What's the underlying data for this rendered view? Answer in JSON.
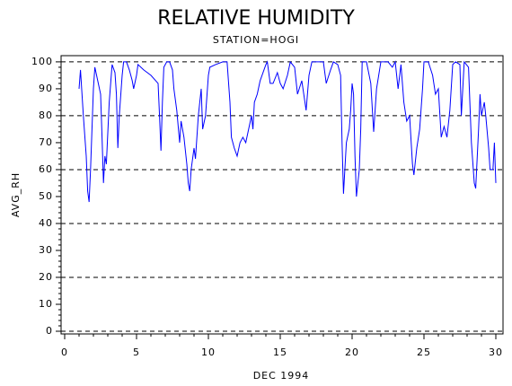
{
  "chart_data": {
    "type": "line",
    "title": "RELATIVE HUMIDITY",
    "subtitle": "STATION=HOGI",
    "x_label": "DEC 1994",
    "y_label": "AVG_RH",
    "xlim": [
      -0.25,
      30.5
    ],
    "ylim": [
      -1,
      102.3
    ],
    "xticks": [
      0,
      5,
      10,
      15,
      20,
      25,
      30
    ],
    "yticks": [
      0,
      10,
      20,
      30,
      40,
      50,
      60,
      70,
      80,
      90,
      100
    ],
    "xminorticks": [
      1,
      2,
      3,
      4,
      6,
      7,
      8,
      9,
      11,
      12,
      13,
      14,
      16,
      17,
      18,
      19,
      21,
      22,
      23,
      24,
      26,
      27,
      28,
      29
    ],
    "yminorticks": [
      2,
      4,
      6,
      8,
      12,
      14,
      16,
      18,
      22,
      24,
      26,
      28,
      32,
      34,
      36,
      38,
      42,
      44,
      46,
      48,
      52,
      54,
      56,
      58,
      62,
      64,
      66,
      68,
      72,
      74,
      76,
      78,
      82,
      84,
      86,
      88,
      92,
      94,
      96,
      98
    ],
    "gridlines": [
      0,
      20,
      40,
      60,
      80,
      100
    ],
    "x": [
      1.0,
      1.1,
      1.3,
      1.5,
      1.6,
      1.7,
      1.8,
      2.0,
      2.1,
      2.3,
      2.5,
      2.6,
      2.7,
      2.8,
      2.9,
      3.1,
      3.3,
      3.5,
      3.6,
      3.7,
      3.8,
      4.0,
      4.1,
      4.3,
      4.5,
      4.7,
      4.8,
      5.0,
      5.1,
      5.5,
      6.0,
      6.5,
      6.6,
      6.7,
      6.8,
      6.9,
      7.1,
      7.3,
      7.5,
      7.6,
      7.8,
      8.0,
      8.1,
      8.3,
      8.5,
      8.6,
      8.7,
      8.8,
      9.0,
      9.1,
      9.3,
      9.5,
      9.6,
      9.8,
      10.0,
      10.1,
      10.5,
      11.0,
      11.3,
      11.5,
      11.6,
      11.8,
      12.0,
      12.2,
      12.4,
      12.6,
      12.8,
      13.0,
      13.1,
      13.2,
      13.4,
      13.6,
      13.8,
      14.0,
      14.1,
      14.3,
      14.5,
      14.8,
      15.0,
      15.2,
      15.5,
      15.7,
      16.0,
      16.2,
      16.5,
      16.8,
      17.0,
      17.2,
      17.5,
      18.0,
      18.2,
      18.5,
      18.7,
      19.0,
      19.2,
      19.3,
      19.4,
      19.6,
      19.8,
      19.9,
      20.0,
      20.1,
      20.2,
      20.3,
      20.5,
      20.6,
      20.7,
      21.0,
      21.3,
      21.5,
      21.7,
      22.0,
      22.5,
      22.8,
      23.0,
      23.2,
      23.4,
      23.6,
      23.8,
      24.0,
      24.2,
      24.3,
      24.5,
      24.7,
      24.9,
      25.0,
      25.3,
      25.6,
      25.8,
      26.0,
      26.2,
      26.4,
      26.6,
      26.8,
      27.0,
      27.2,
      27.5,
      27.6,
      27.8,
      28.1,
      28.3,
      28.5,
      28.6,
      28.8,
      28.9,
      29.0,
      29.2,
      29.3,
      29.5,
      29.6,
      29.8,
      29.9,
      30.0
    ],
    "series": [
      {
        "color": "#0000ff",
        "values": [
          90,
          97,
          80,
          65,
          52,
          48,
          60,
          90,
          98,
          93,
          88,
          72,
          55,
          65,
          62,
          85,
          99,
          96,
          88,
          68,
          80,
          95,
          100,
          100,
          97,
          93,
          90,
          95,
          99,
          97,
          95,
          92,
          80,
          67,
          85,
          98,
          100,
          100,
          97,
          90,
          82,
          70,
          78,
          72,
          62,
          55,
          52,
          60,
          68,
          64,
          80,
          90,
          75,
          80,
          95,
          98,
          99,
          100,
          100,
          85,
          72,
          68,
          65,
          70,
          72,
          70,
          75,
          80,
          75,
          85,
          88,
          93,
          96,
          99,
          100,
          92,
          92,
          96,
          92,
          90,
          95,
          100,
          98,
          88,
          93,
          82,
          95,
          100,
          100,
          100,
          92,
          97,
          100,
          99,
          95,
          70,
          51,
          70,
          75,
          82,
          92,
          88,
          65,
          50,
          60,
          75,
          100,
          100,
          92,
          74,
          90,
          100,
          100,
          98,
          100,
          90,
          99,
          85,
          78,
          80,
          62,
          58,
          68,
          75,
          90,
          100,
          100,
          95,
          88,
          90,
          72,
          76,
          72,
          82,
          99,
          100,
          99,
          80,
          100,
          98,
          70,
          55,
          53,
          75,
          88,
          80,
          85,
          80,
          68,
          60,
          60,
          70,
          55
        ]
      }
    ]
  }
}
